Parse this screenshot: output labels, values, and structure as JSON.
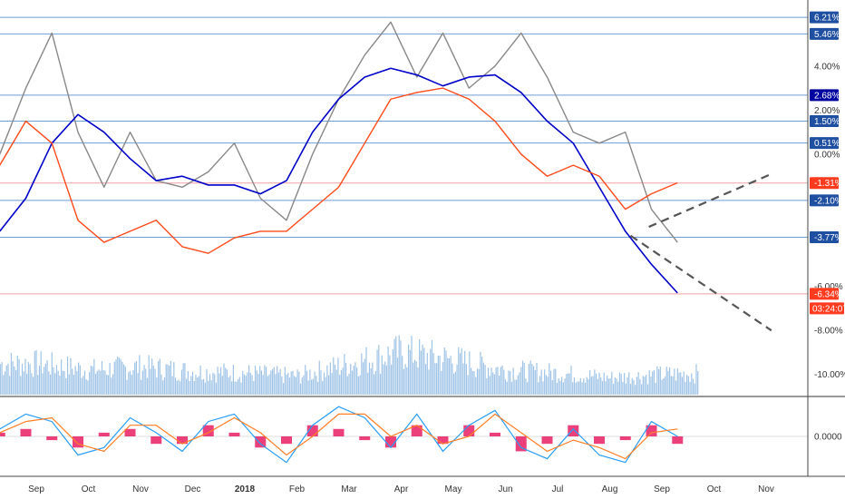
{
  "chart_data": [
    {
      "type": "line",
      "title": "",
      "panel": "main",
      "x_ticks": [
        "Sep",
        "Oct",
        "Nov",
        "Dec",
        "2018",
        "Feb",
        "Mar",
        "Apr",
        "May",
        "Jun",
        "Jul",
        "Aug",
        "Sep",
        "Oct",
        "Nov"
      ],
      "y_ticks": [
        "4.00%",
        "2.00%",
        "0.00%",
        "-6.00%",
        "-8.00%",
        "-10.00%"
      ],
      "ylim": [
        -11.0,
        7.0
      ],
      "price_tags": [
        {
          "label": "6.21%",
          "value": 6.21,
          "color": "#1f4fa0"
        },
        {
          "label": "5.46%",
          "value": 5.46,
          "color": "#1f4fa0"
        },
        {
          "label": "2.68%",
          "value": 2.68,
          "color": "#0000a0"
        },
        {
          "label": "1.50%",
          "value": 1.5,
          "color": "#1f4fa0"
        },
        {
          "label": "0.51%",
          "value": 0.51,
          "color": "#1f4fa0"
        },
        {
          "label": "-1.31%",
          "value": -1.31,
          "color": "#ff3b1f"
        },
        {
          "label": "-2.10%",
          "value": -2.1,
          "color": "#1f4fa0"
        },
        {
          "label": "-3.77%",
          "value": -3.77,
          "color": "#1f4fa0"
        },
        {
          "label": "-6.34%",
          "value": -6.34,
          "color": "#ff3b1f"
        }
      ],
      "countdown_label": "03:24:07",
      "series": [
        {
          "name": "",
          "color": "#888888",
          "x": [
            0,
            0.5,
            1,
            1.5,
            2,
            2.5,
            3,
            3.5,
            4,
            4.5,
            5,
            5.5,
            6,
            6.5,
            7,
            7.5,
            8,
            8.5,
            9,
            9.5,
            10,
            10.5,
            11,
            11.5,
            12,
            12.5,
            13
          ],
          "values": [
            0.0,
            3.0,
            5.5,
            1.0,
            -1.5,
            1.0,
            -1.2,
            -1.5,
            -0.8,
            0.5,
            -2.0,
            -3.0,
            0.0,
            2.5,
            4.5,
            6.0,
            3.5,
            5.5,
            3.0,
            4.0,
            5.5,
            3.5,
            1.0,
            0.5,
            1.0,
            -2.5,
            -4.0
          ]
        },
        {
          "name": "",
          "color": "#0000c8",
          "x": [
            0,
            0.5,
            1,
            1.5,
            2,
            2.5,
            3,
            3.5,
            4,
            4.5,
            5,
            5.5,
            6,
            6.5,
            7,
            7.5,
            8,
            8.5,
            9,
            9.5,
            10,
            10.5,
            11,
            11.5,
            12,
            12.5,
            13
          ],
          "values": [
            -3.5,
            -2.0,
            0.5,
            1.8,
            1.0,
            -0.2,
            -1.2,
            -1.0,
            -1.4,
            -1.4,
            -1.8,
            -1.2,
            1.0,
            2.5,
            3.5,
            3.9,
            3.6,
            3.1,
            3.5,
            3.6,
            2.8,
            1.5,
            0.5,
            -1.5,
            -3.5,
            -5.0,
            -6.3
          ]
        },
        {
          "name": "",
          "color": "#ff4a1a",
          "x": [
            0,
            0.5,
            1,
            1.5,
            2,
            2.5,
            3,
            3.5,
            4,
            4.5,
            5,
            5.5,
            6,
            6.5,
            7,
            7.5,
            8,
            8.5,
            9,
            9.5,
            10,
            10.5,
            11,
            11.5,
            12,
            12.5,
            13
          ],
          "values": [
            -0.5,
            1.5,
            0.5,
            -3.0,
            -4.0,
            -3.5,
            -3.0,
            -4.2,
            -4.5,
            -3.8,
            -3.5,
            -3.5,
            -2.5,
            -1.5,
            0.5,
            2.5,
            2.8,
            3.0,
            2.5,
            1.5,
            0.0,
            -1.0,
            -0.5,
            -1.0,
            -2.5,
            -1.8,
            -1.3
          ]
        }
      ],
      "trendlines": [
        {
          "x": [
            11.75,
            14.1
          ],
          "values": [
            -3.3,
            -0.9
          ]
        },
        {
          "x": [
            11.4,
            14.1
          ],
          "values": [
            -3.7,
            -8.0
          ]
        }
      ],
      "volume": {
        "color": "#9ec3e6",
        "x": [
          0,
          1,
          2,
          3,
          4,
          5,
          6,
          7,
          8,
          9,
          10,
          11,
          12,
          13
        ],
        "values": [
          40,
          32,
          36,
          30,
          28,
          24,
          40,
          55,
          45,
          32,
          28,
          22,
          26,
          28
        ]
      }
    },
    {
      "type": "line",
      "title": "",
      "panel": "oscillator",
      "y_ticks": [
        "0.0000"
      ],
      "ylim": [
        -1.0,
        1.0
      ],
      "x": [
        0,
        0.5,
        1,
        1.5,
        2,
        2.5,
        3,
        3.5,
        4,
        4.5,
        5,
        5.5,
        6,
        6.5,
        7,
        7.5,
        8,
        8.5,
        9,
        9.5,
        10,
        10.5,
        11,
        11.5,
        12,
        12.5,
        13
      ],
      "series": [
        {
          "name": "",
          "color": "#2a9df4",
          "values": [
            0.2,
            0.6,
            0.4,
            -0.5,
            -0.3,
            0.5,
            0.1,
            -0.4,
            0.4,
            0.6,
            -0.2,
            -0.7,
            0.3,
            0.8,
            0.5,
            -0.3,
            0.6,
            -0.4,
            0.3,
            0.7,
            -0.3,
            -0.6,
            0.2,
            -0.5,
            -0.7,
            0.4,
            0.0
          ]
        },
        {
          "name": "",
          "color": "#ff7f27",
          "values": [
            0.1,
            0.4,
            0.5,
            -0.2,
            -0.4,
            0.3,
            0.3,
            -0.2,
            0.1,
            0.5,
            0.1,
            -0.5,
            0.0,
            0.6,
            0.6,
            0.0,
            0.3,
            -0.2,
            0.0,
            0.6,
            0.1,
            -0.4,
            -0.1,
            -0.3,
            -0.6,
            0.1,
            0.2
          ]
        }
      ],
      "histogram": {
        "color": "#e81e63",
        "values": [
          0.1,
          0.2,
          -0.1,
          -0.3,
          0.1,
          0.2,
          -0.2,
          -0.2,
          0.3,
          0.1,
          -0.3,
          -0.2,
          0.3,
          0.2,
          -0.1,
          -0.3,
          0.3,
          -0.2,
          0.3,
          0.1,
          -0.4,
          -0.2,
          0.3,
          -0.2,
          -0.1,
          0.3,
          -0.2
        ]
      }
    }
  ]
}
